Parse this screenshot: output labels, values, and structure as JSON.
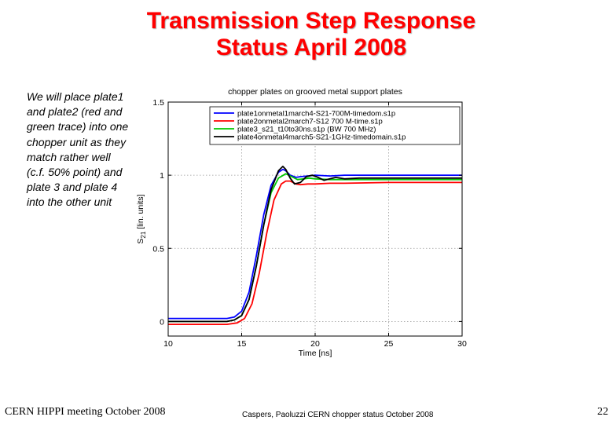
{
  "slide": {
    "title_line1": "Transmission Step Response",
    "title_line2": "Status  April 2008",
    "side_text": "We will place plate1 and plate2 (red and green trace) into one chopper unit as they match rather well (c.f. 50% point) and plate 3 and plate 4 into the other unit",
    "footer_left": "CERN HIPPI meeting October 2008",
    "footer_center": "Caspers, Paoluzzi CERN chopper status October 2008",
    "page_number": "22"
  },
  "chart_data": {
    "type": "line",
    "title": "chopper plates on grooved metal support plates",
    "xlabel": "Time [ns]",
    "ylabel": "S21 [lin. units]",
    "xlim": [
      10,
      30
    ],
    "ylim": [
      -0.1,
      1.5
    ],
    "xticks": [
      10,
      15,
      20,
      25,
      30
    ],
    "yticks": [
      0,
      0.5,
      1,
      1.5
    ],
    "grid": true,
    "legend_position": "top-right",
    "series": [
      {
        "name": "plate1onmetal1march4-S21-700M-timedom.s1p",
        "color": "#0000ff",
        "x": [
          10,
          14,
          14.5,
          15,
          15.5,
          16,
          16.5,
          17,
          17.5,
          17.8,
          18,
          18.3,
          18.7,
          19,
          19.5,
          20,
          21,
          22,
          25,
          30
        ],
        "y": [
          0.02,
          0.02,
          0.03,
          0.07,
          0.2,
          0.45,
          0.73,
          0.93,
          1.02,
          1.04,
          1.03,
          1.0,
          0.985,
          0.99,
          0.995,
          1.0,
          0.995,
          1.0,
          1.0,
          1.0
        ]
      },
      {
        "name": "plate2onmetal2march7-S12 700 M-time.s1p",
        "color": "#ff0000",
        "x": [
          10,
          14,
          14.7,
          15.2,
          15.7,
          16.2,
          16.7,
          17.2,
          17.7,
          18,
          18.3,
          18.7,
          19,
          19.5,
          20,
          21,
          22,
          25,
          30
        ],
        "y": [
          -0.02,
          -0.02,
          -0.01,
          0.02,
          0.12,
          0.33,
          0.6,
          0.83,
          0.94,
          0.96,
          0.96,
          0.94,
          0.935,
          0.94,
          0.94,
          0.945,
          0.945,
          0.95,
          0.95
        ]
      },
      {
        "name": "plate3_s21_t10to30ns.s1p (BW 700 MHz)",
        "color": "#00c800",
        "x": [
          10,
          14,
          14.5,
          15,
          15.5,
          16,
          16.5,
          17,
          17.5,
          18,
          18.4,
          18.8,
          19.2,
          19.6,
          20,
          21,
          22,
          25,
          30
        ],
        "y": [
          0.0,
          0.0,
          0.01,
          0.04,
          0.15,
          0.38,
          0.66,
          0.88,
          0.98,
          1.01,
          0.99,
          0.97,
          0.975,
          0.98,
          0.975,
          0.97,
          0.97,
          0.97,
          0.97
        ]
      },
      {
        "name": "plate4onmetal4march5-S21-1GHz-timedomain.s1p",
        "color": "#000000",
        "x": [
          10,
          14,
          14.5,
          15,
          15.5,
          16,
          16.5,
          17,
          17.5,
          17.8,
          18,
          18.3,
          18.6,
          19,
          19.4,
          19.8,
          20.2,
          20.6,
          21,
          21.4,
          22,
          23,
          25,
          30
        ],
        "y": [
          0.0,
          0.0,
          0.01,
          0.04,
          0.15,
          0.38,
          0.66,
          0.9,
          1.03,
          1.06,
          1.04,
          0.98,
          0.94,
          0.95,
          0.99,
          1.0,
          0.985,
          0.965,
          0.975,
          0.985,
          0.975,
          0.98,
          0.98,
          0.98
        ]
      }
    ]
  }
}
